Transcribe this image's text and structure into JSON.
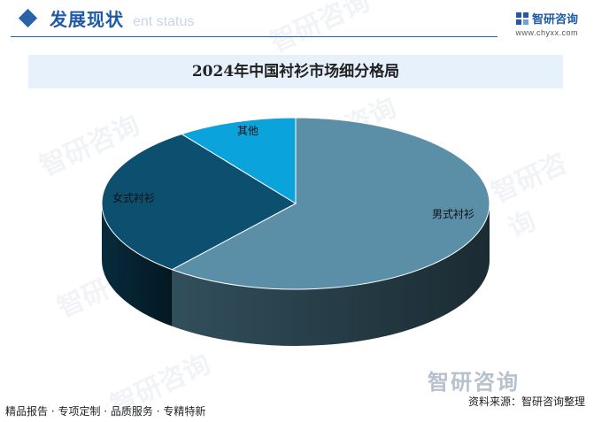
{
  "header": {
    "section_title": "发展现状",
    "section_subtitle": "ent status"
  },
  "brand": {
    "name": "智研咨询",
    "url": "www.chyxx.com",
    "watermark": "智研咨询"
  },
  "chart_data": {
    "type": "pie",
    "title": "2024年中国衬衫市场细分格局",
    "slices": [
      {
        "label": "男式衬衫",
        "value": 61,
        "color": "#5b8fa8"
      },
      {
        "label": "女式衬衫",
        "value": 29,
        "color": "#0d4f6e"
      },
      {
        "label": "其他",
        "value": 10,
        "color": "#0aa3db"
      }
    ],
    "style": "3d"
  },
  "footer": {
    "left": "精品报告 · 专项定制 · 品质服务 · 专精特新",
    "source": "资料来源：智研咨询整理"
  }
}
